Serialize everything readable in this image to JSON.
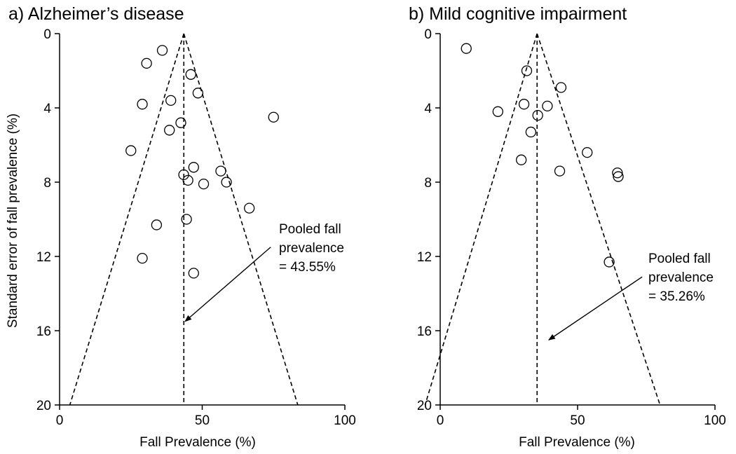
{
  "chart_data": [
    {
      "type": "scatter",
      "title": "a) Alzheimer’s disease",
      "xlabel": "Fall Prevalence (%)",
      "ylabel": "Standard error of fall prevalence (%)",
      "xlim": [
        0,
        100
      ],
      "ylim": [
        0,
        20
      ],
      "y_inverted": true,
      "xticks": [
        "0",
        "50",
        "100"
      ],
      "yticks": [
        "0",
        "4",
        "8",
        "12",
        "16",
        "20"
      ],
      "pooled": 43.55,
      "funnel_apex": [
        43.55,
        0
      ],
      "funnel_base": [
        3.6,
        83.5
      ],
      "annotation": {
        "lines": [
          "Pooled fall",
          "prevalence",
          "= 43.55%"
        ],
        "arrow_from": [
          74,
          11.5
        ],
        "arrow_to": [
          44,
          15.5
        ]
      },
      "points": [
        {
          "x": 36,
          "y": 0.9
        },
        {
          "x": 30.5,
          "y": 1.6
        },
        {
          "x": 46,
          "y": 2.2
        },
        {
          "x": 48.5,
          "y": 3.2
        },
        {
          "x": 39,
          "y": 3.6
        },
        {
          "x": 29,
          "y": 3.8
        },
        {
          "x": 75,
          "y": 4.5
        },
        {
          "x": 42.5,
          "y": 4.8
        },
        {
          "x": 38.5,
          "y": 5.2
        },
        {
          "x": 25,
          "y": 6.3
        },
        {
          "x": 47,
          "y": 7.2
        },
        {
          "x": 56.5,
          "y": 7.4
        },
        {
          "x": 43.5,
          "y": 7.6
        },
        {
          "x": 45,
          "y": 7.9
        },
        {
          "x": 50.5,
          "y": 8.1
        },
        {
          "x": 58.5,
          "y": 8.0
        },
        {
          "x": 66.5,
          "y": 9.4
        },
        {
          "x": 44.5,
          "y": 10.0
        },
        {
          "x": 34,
          "y": 10.3
        },
        {
          "x": 29,
          "y": 12.1
        },
        {
          "x": 47,
          "y": 12.9
        }
      ]
    },
    {
      "type": "scatter",
      "title": "b) Mild cognitive impairment",
      "xlabel": "Fall Prevalence (%)",
      "ylabel": "",
      "xlim": [
        0,
        100
      ],
      "ylim": [
        0,
        20
      ],
      "y_inverted": true,
      "xticks": [
        "0",
        "50",
        "100"
      ],
      "yticks": [
        "0",
        "4",
        "8",
        "12",
        "16",
        "20"
      ],
      "pooled": 35.26,
      "funnel_apex": [
        35.26,
        0
      ],
      "funnel_base": [
        -5.5,
        80
      ],
      "annotation": {
        "lines": [
          "Pooled fall",
          "prevalence",
          "= 35.26%"
        ],
        "arrow_from": [
          73.5,
          13.1
        ],
        "arrow_to": [
          39.5,
          16.5
        ]
      },
      "points": [
        {
          "x": 9.5,
          "y": 0.8
        },
        {
          "x": 31.5,
          "y": 2.0
        },
        {
          "x": 44,
          "y": 2.9
        },
        {
          "x": 30.5,
          "y": 3.8
        },
        {
          "x": 39,
          "y": 3.9
        },
        {
          "x": 35.5,
          "y": 4.4
        },
        {
          "x": 21,
          "y": 4.2
        },
        {
          "x": 33,
          "y": 5.3
        },
        {
          "x": 53.5,
          "y": 6.4
        },
        {
          "x": 29.5,
          "y": 6.8
        },
        {
          "x": 43.5,
          "y": 7.4
        },
        {
          "x": 64.5,
          "y": 7.5
        },
        {
          "x": 64.8,
          "y": 7.7
        },
        {
          "x": 61.5,
          "y": 12.3
        }
      ]
    }
  ]
}
